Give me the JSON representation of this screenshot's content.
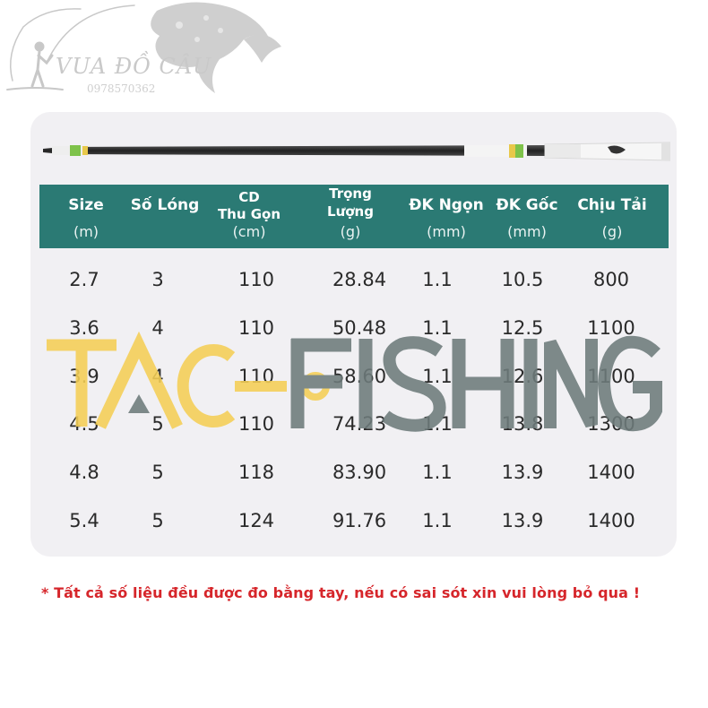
{
  "brand": {
    "name": "VUA ĐỒ CÂU",
    "phone": "0978570362"
  },
  "watermark": {
    "text_left": "TAC",
    "text_right": "FISHING",
    "color_yellow": "#f5cf55",
    "color_gray": "#6e7b7b"
  },
  "table": {
    "header_bg": "#2b7a74",
    "columns": [
      {
        "title": "Size",
        "unit": "(m)"
      },
      {
        "title": "Số Lóng",
        "unit": ""
      },
      {
        "title": "CD",
        "title2": "Thu Gọn",
        "unit": "(cm)"
      },
      {
        "title": "Trọng",
        "title2": "Lượng",
        "unit": "(g)"
      },
      {
        "title": "ĐK Ngọn",
        "unit": "(mm)"
      },
      {
        "title": "ĐK Gốc",
        "unit": "(mm)"
      },
      {
        "title": "Chịu Tải",
        "unit": "(g)"
      }
    ],
    "rows": [
      [
        "2.7",
        "3",
        "110",
        "28.84",
        "1.1",
        "10.5",
        "800"
      ],
      [
        "3.6",
        "4",
        "110",
        "50.48",
        "1.1",
        "12.5",
        "1100"
      ],
      [
        "3.9",
        "4",
        "110",
        "58.60",
        "1.1",
        "12.6",
        "1100"
      ],
      [
        "4.5",
        "5",
        "110",
        "74.23",
        "1.1",
        "13.8",
        "1300"
      ],
      [
        "4.8",
        "5",
        "118",
        "83.90",
        "1.1",
        "13.9",
        "1400"
      ],
      [
        "5.4",
        "5",
        "124",
        "91.76",
        "1.1",
        "13.9",
        "1400"
      ]
    ]
  },
  "note": "* Tất cả số liệu đều được đo bằng tay, nếu có sai sót xin vui lòng bỏ qua !"
}
